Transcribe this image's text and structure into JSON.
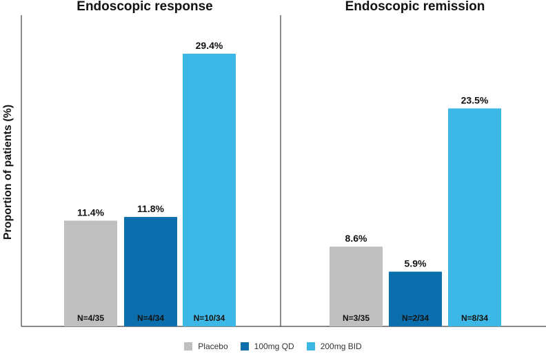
{
  "chart_data": [
    {
      "type": "bar",
      "title": "Endoscopic response",
      "ylabel": "Proportion of patients (%)",
      "categories": [
        "Placebo",
        "100mg QD",
        "200mg BID"
      ],
      "values": [
        11.4,
        11.8,
        29.4
      ],
      "value_labels": [
        "11.4%",
        "11.8%",
        "29.4%"
      ],
      "n_labels": [
        "N=4/35",
        "N=4/34",
        "N=10/34"
      ],
      "ylim": [
        0,
        32
      ]
    },
    {
      "type": "bar",
      "title": "Endoscopic remission",
      "categories": [
        "Placebo",
        "100mg QD",
        "200mg BID"
      ],
      "values": [
        8.6,
        5.9,
        23.5
      ],
      "value_labels": [
        "8.6%",
        "5.9%",
        "23.5%"
      ],
      "n_labels": [
        "N=3/35",
        "N=2/34",
        "N=8/34"
      ],
      "ylim": [
        0,
        32
      ]
    }
  ],
  "legend": [
    {
      "label": "Placebo",
      "color": "#bfbfbf"
    },
    {
      "label": "100mg QD",
      "color": "#0b6fae"
    },
    {
      "label": "200mg BID",
      "color": "#3db8e6"
    }
  ],
  "colors": {
    "axis": "#404040"
  }
}
